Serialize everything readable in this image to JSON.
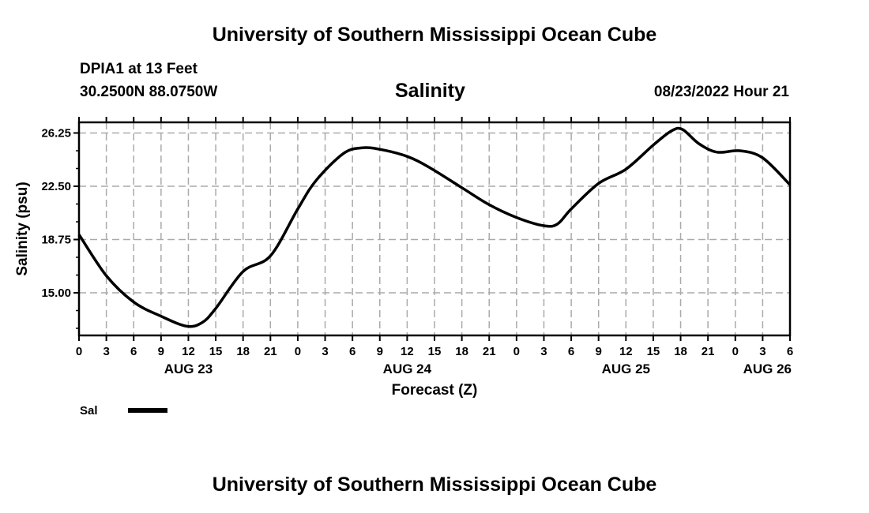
{
  "header": {
    "title": "University of Southern Mississippi Ocean Cube",
    "station": "DPIA1 at 13 Feet",
    "coords": "30.2500N  88.0750W",
    "variable": "Salinity",
    "datetime": "08/23/2022 Hour 21"
  },
  "footer": {
    "title": "University of Southern Mississippi Ocean Cube"
  },
  "chart_data": {
    "type": "line",
    "title": "Salinity",
    "xlabel": "Forecast (Z)",
    "ylabel": "Salinity (psu)",
    "xlim_hours": [
      0,
      78
    ],
    "ylim": [
      12,
      27
    ],
    "grid": true,
    "yticks": [
      15.0,
      18.75,
      22.5,
      26.25
    ],
    "ytick_labels": [
      "15.00",
      "18.75",
      "22.50",
      "26.25"
    ],
    "xtick_labels": [
      "0",
      "3",
      "6",
      "9",
      "12",
      "15",
      "18",
      "21",
      "0",
      "3",
      "6",
      "9",
      "12",
      "15",
      "18",
      "21",
      "0",
      "3",
      "6",
      "9",
      "12",
      "15",
      "18",
      "21",
      "0",
      "3",
      "6"
    ],
    "date_labels": [
      {
        "label": "AUG 23",
        "hour": 12
      },
      {
        "label": "AUG 24",
        "hour": 36
      },
      {
        "label": "AUG 25",
        "hour": 60
      },
      {
        "label": "AUG 26",
        "hour": 78
      }
    ],
    "legend": {
      "label": "Sal",
      "placement": "bottom-left"
    },
    "series": [
      {
        "name": "Sal",
        "color": "#000000",
        "x": [
          0,
          3,
          6,
          9,
          11.8,
          13.5,
          15,
          18,
          21,
          24,
          26,
          29,
          31,
          33,
          36,
          38.5,
          42,
          45,
          48,
          51,
          52.5,
          54,
          57,
          60,
          63,
          65,
          66.2,
          68,
          70,
          72.5,
          75,
          78
        ],
        "y": [
          19.1,
          16.2,
          14.35,
          13.35,
          12.65,
          12.9,
          13.9,
          16.5,
          17.6,
          20.9,
          22.9,
          24.8,
          25.2,
          25.1,
          24.6,
          23.8,
          22.4,
          21.2,
          20.3,
          19.72,
          19.85,
          20.9,
          22.7,
          23.7,
          25.4,
          26.4,
          26.5,
          25.5,
          24.9,
          25.0,
          24.5,
          22.6
        ]
      }
    ]
  }
}
